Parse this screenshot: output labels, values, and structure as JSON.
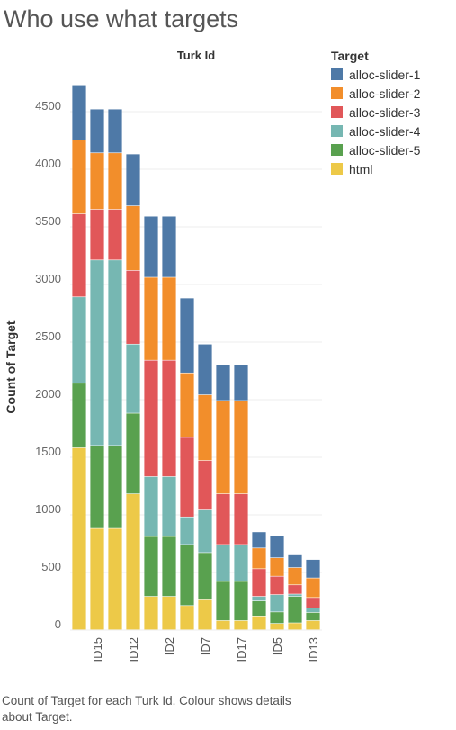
{
  "title": "Who use what targets",
  "footer": "Count of Target for each Turk Id.  Colour shows details about Target.",
  "legend": {
    "title": "Target",
    "items": [
      {
        "label": "alloc-slider-1",
        "color": "#4e79a7"
      },
      {
        "label": "alloc-slider-2",
        "color": "#f28e2b"
      },
      {
        "label": "alloc-slider-3",
        "color": "#e15759"
      },
      {
        "label": "alloc-slider-4",
        "color": "#76b7b2"
      },
      {
        "label": "alloc-slider-5",
        "color": "#59a14f"
      },
      {
        "label": "html",
        "color": "#edc948"
      }
    ]
  },
  "chart_data": {
    "type": "bar",
    "stacked": true,
    "title": "Turk Id",
    "xlabel": "",
    "ylabel": "Count of Target",
    "ylim": [
      0,
      4750
    ],
    "yticks": [
      0,
      500,
      1000,
      1500,
      2000,
      2500,
      3000,
      3500,
      4000,
      4500
    ],
    "grid": true,
    "legend_position": "right",
    "categories": [
      "",
      "ID15",
      "",
      "ID12",
      "",
      "ID2",
      "",
      "ID7",
      "",
      "ID17",
      "",
      "ID5",
      "",
      "ID13"
    ],
    "series": [
      {
        "name": "html",
        "color": "#edc948",
        "values": [
          1580,
          880,
          880,
          1180,
          290,
          290,
          210,
          260,
          80,
          80,
          120,
          55,
          60,
          80
        ]
      },
      {
        "name": "alloc-slider-5",
        "color": "#59a14f",
        "values": [
          560,
          720,
          720,
          700,
          520,
          520,
          530,
          410,
          340,
          340,
          130,
          100,
          230,
          70
        ]
      },
      {
        "name": "alloc-slider-4",
        "color": "#76b7b2",
        "values": [
          750,
          1610,
          1610,
          600,
          520,
          520,
          240,
          370,
          320,
          320,
          40,
          150,
          20,
          40
        ]
      },
      {
        "name": "alloc-slider-3",
        "color": "#e15759",
        "values": [
          720,
          440,
          440,
          640,
          1010,
          1010,
          690,
          430,
          440,
          440,
          240,
          160,
          80,
          90
        ]
      },
      {
        "name": "alloc-slider-2",
        "color": "#f28e2b",
        "values": [
          640,
          490,
          490,
          560,
          720,
          720,
          560,
          570,
          810,
          810,
          180,
          160,
          150,
          170
        ]
      },
      {
        "name": "alloc-slider-1",
        "color": "#4e79a7",
        "values": [
          480,
          380,
          380,
          450,
          530,
          530,
          650,
          440,
          310,
          310,
          140,
          195,
          110,
          160
        ]
      }
    ]
  }
}
